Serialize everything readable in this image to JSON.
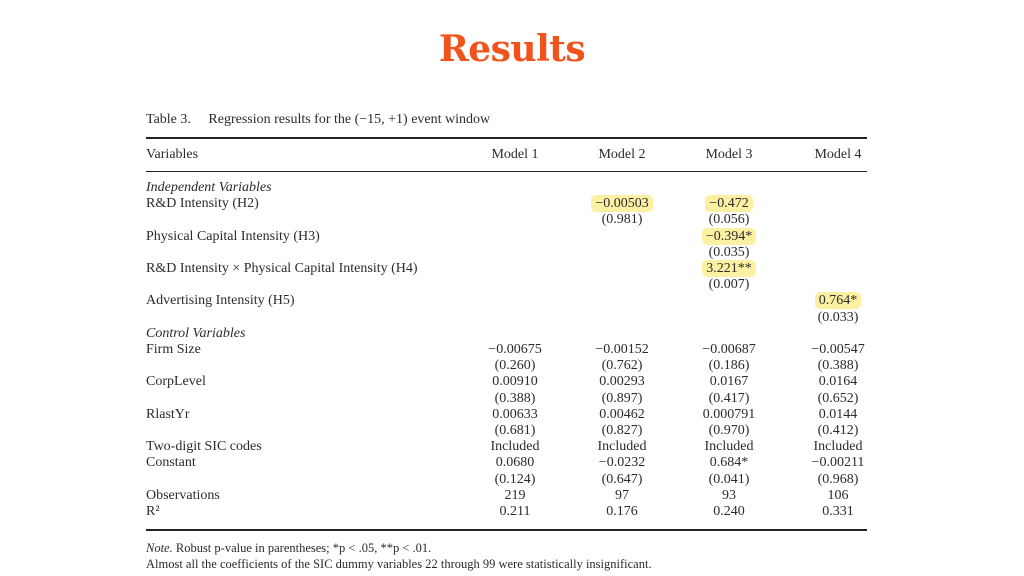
{
  "title": "Results",
  "caption": {
    "number": "Table 3.",
    "text": "Regression results for the (−15, +1) event window"
  },
  "header": [
    "Variables",
    "Model 1",
    "Model 2",
    "Model 3",
    "Model 4"
  ],
  "rows": [
    {
      "label": "Independent Variables",
      "section": true,
      "cells": [
        "",
        "",
        "",
        ""
      ]
    },
    {
      "label": "R&D Intensity (H2)",
      "cells": [
        "",
        "−0.00503",
        "−0.472",
        ""
      ],
      "highlight": [
        false,
        true,
        true,
        false
      ]
    },
    {
      "label": "",
      "cells": [
        "",
        "(0.981)",
        "(0.056)",
        ""
      ]
    },
    {
      "label": "Physical Capital Intensity (H3)",
      "cells": [
        "",
        "",
        "−0.394*",
        ""
      ],
      "highlight": [
        false,
        false,
        true,
        false
      ]
    },
    {
      "label": "",
      "cells": [
        "",
        "",
        "(0.035)",
        ""
      ]
    },
    {
      "label": "R&D Intensity × Physical Capital Intensity (H4)",
      "cells": [
        "",
        "",
        "3.221**",
        ""
      ],
      "highlight": [
        false,
        false,
        true,
        false
      ]
    },
    {
      "label": "",
      "cells": [
        "",
        "",
        "(0.007)",
        ""
      ]
    },
    {
      "label": "Advertising Intensity (H5)",
      "cells": [
        "",
        "",
        "",
        "0.764*"
      ],
      "highlight": [
        false,
        false,
        false,
        true
      ]
    },
    {
      "label": "",
      "cells": [
        "",
        "",
        "",
        "(0.033)"
      ]
    },
    {
      "label": "Control Variables",
      "section": true,
      "cells": [
        "",
        "",
        "",
        ""
      ]
    },
    {
      "label": "Firm Size",
      "cells": [
        "−0.00675",
        "−0.00152",
        "−0.00687",
        "−0.00547"
      ]
    },
    {
      "label": "",
      "cells": [
        "(0.260)",
        "(0.762)",
        "(0.186)",
        "(0.388)"
      ]
    },
    {
      "label": "CorpLevel",
      "cells": [
        "0.00910",
        "0.00293",
        "0.0167",
        "0.0164"
      ]
    },
    {
      "label": "",
      "cells": [
        "(0.388)",
        "(0.897)",
        "(0.417)",
        "(0.652)"
      ]
    },
    {
      "label": "RlastYr",
      "cells": [
        "0.00633",
        "0.00462",
        "0.000791",
        "0.0144"
      ]
    },
    {
      "label": "",
      "cells": [
        "(0.681)",
        "(0.827)",
        "(0.970)",
        "(0.412)"
      ]
    },
    {
      "label": "Two-digit SIC codes",
      "cells": [
        "Included",
        "Included",
        "Included",
        "Included"
      ]
    },
    {
      "label": "Constant",
      "cells": [
        "0.0680",
        "−0.0232",
        "0.684*",
        "−0.00211"
      ]
    },
    {
      "label": "",
      "cells": [
        "(0.124)",
        "(0.647)",
        "(0.041)",
        "(0.968)"
      ]
    },
    {
      "label": "Observations",
      "cells": [
        "219",
        "97",
        "93",
        "106"
      ]
    },
    {
      "label": "R²",
      "cells": [
        "0.211",
        "0.176",
        "0.240",
        "0.331"
      ]
    }
  ],
  "note": {
    "lead": "Note.",
    "line1": " Robust p-value in parentheses; *p < .05, **p < .01.",
    "line2": "Almost all the coefficients of the SIC dummy variables 22 through 99 were statistically insignificant."
  }
}
